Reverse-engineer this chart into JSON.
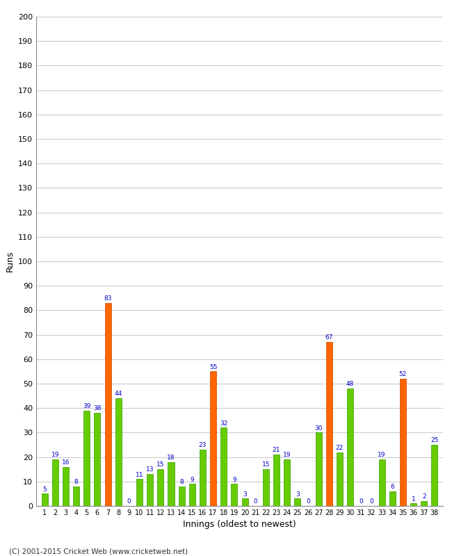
{
  "innings": [
    1,
    2,
    3,
    4,
    5,
    6,
    7,
    8,
    9,
    10,
    11,
    12,
    13,
    14,
    15,
    16,
    17,
    18,
    19,
    20,
    21,
    22,
    23,
    24,
    25,
    26,
    27,
    28,
    29,
    30,
    31,
    32,
    33,
    34,
    35,
    36,
    37,
    38
  ],
  "values": [
    5,
    19,
    16,
    8,
    39,
    38,
    83,
    44,
    0,
    11,
    13,
    15,
    18,
    8,
    9,
    23,
    55,
    32,
    9,
    3,
    0,
    15,
    21,
    19,
    3,
    0,
    30,
    67,
    22,
    48,
    0,
    0,
    19,
    6,
    52,
    1,
    2,
    25
  ],
  "colors": [
    "#66cc00",
    "#66cc00",
    "#66cc00",
    "#66cc00",
    "#66cc00",
    "#66cc00",
    "#ff6600",
    "#66cc00",
    "#66cc00",
    "#66cc00",
    "#66cc00",
    "#66cc00",
    "#66cc00",
    "#66cc00",
    "#66cc00",
    "#66cc00",
    "#ff6600",
    "#66cc00",
    "#66cc00",
    "#66cc00",
    "#66cc00",
    "#66cc00",
    "#66cc00",
    "#66cc00",
    "#66cc00",
    "#66cc00",
    "#66cc00",
    "#ff6600",
    "#66cc00",
    "#66cc00",
    "#66cc00",
    "#66cc00",
    "#66cc00",
    "#66cc00",
    "#ff6600",
    "#66cc00",
    "#66cc00",
    "#66cc00"
  ],
  "xlabel": "Innings (oldest to newest)",
  "ylabel": "Runs",
  "ylim": [
    0,
    200
  ],
  "yticks": [
    0,
    10,
    20,
    30,
    40,
    50,
    60,
    70,
    80,
    90,
    100,
    110,
    120,
    130,
    140,
    150,
    160,
    170,
    180,
    190,
    200
  ],
  "label_color": "#0000cc",
  "label_fontsize": 6.5,
  "bar_edge_color": "#339900",
  "orange_edge_color": "#cc4400",
  "background_color": "#ffffff",
  "grid_color": "#cccccc",
  "footer": "(C) 2001-2015 Cricket Web (www.cricketweb.net)"
}
